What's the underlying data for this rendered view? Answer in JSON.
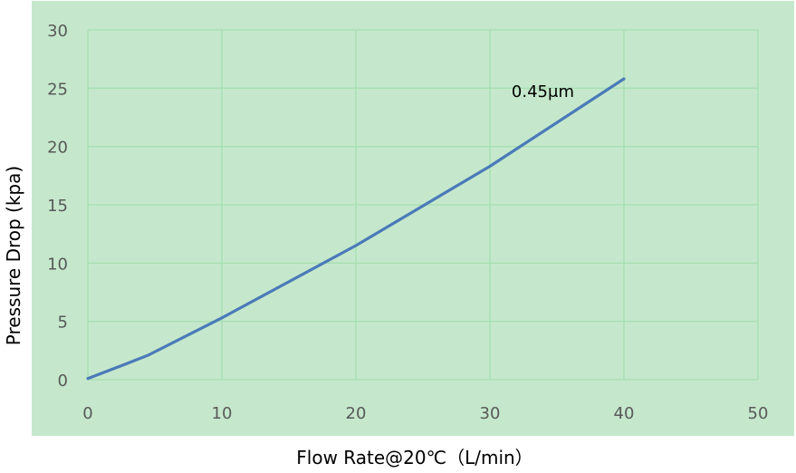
{
  "chart_data": {
    "type": "line",
    "title": "",
    "xlabel": "Flow Rate@20℃（L/min）",
    "ylabel": "Pressure Drop (kpa)",
    "xlim": [
      0,
      50
    ],
    "ylim": [
      0,
      30
    ],
    "x_ticks": [
      "0",
      "10",
      "20",
      "30",
      "40",
      "50"
    ],
    "y_ticks": [
      "0",
      "5",
      "10",
      "15",
      "20",
      "25",
      "30"
    ],
    "grid": true,
    "legend": "none",
    "series": [
      {
        "name": "0.45μm",
        "color": "#4a7ab8",
        "x": [
          0,
          2.5,
          4.5,
          10,
          20,
          30,
          40
        ],
        "y": [
          0.1,
          1.2,
          2.1,
          5.3,
          11.5,
          18.3,
          25.8
        ]
      }
    ],
    "colors": {
      "plot_background": "#c8ebcf",
      "outer_background": "#c5e8cc",
      "gridline": "#a6dfb0",
      "tick_text": "#595959",
      "axis_title_text": "#000000"
    }
  }
}
